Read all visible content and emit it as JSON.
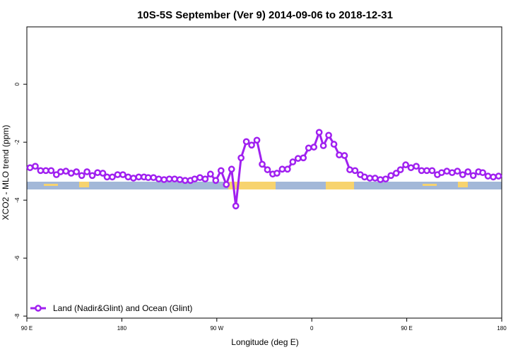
{
  "chart_data": {
    "type": "line",
    "title": "10S-5S September (Ver 9)   2014-09-06 to 2018-12-31",
    "x_label": "Longitude (deg E)",
    "y_label": "XCO2 - MLO trend (ppm)",
    "xlim": [
      90,
      540
    ],
    "ylim": [
      -8.07,
      1.98
    ],
    "xticks": [
      {
        "value": 90,
        "label": "90 E"
      },
      {
        "value": 180,
        "label": "180"
      },
      {
        "value": 270,
        "label": "90 W"
      },
      {
        "value": 360,
        "label": "0"
      },
      {
        "value": 450,
        "label": "90 E"
      },
      {
        "value": 540,
        "label": "180"
      }
    ],
    "yticks": [
      -8,
      -6,
      -4,
      -2,
      0
    ],
    "legend_position": "bottom-left",
    "x": [
      93,
      98,
      103,
      108,
      113,
      118,
      122,
      127,
      132,
      137,
      142,
      147,
      152,
      157,
      162,
      166,
      171,
      176,
      181,
      186,
      191,
      196,
      201,
      205,
      210,
      215,
      220,
      225,
      230,
      235,
      240,
      245,
      249,
      254,
      259,
      264,
      269,
      274,
      279,
      284,
      288,
      293,
      298,
      303,
      308,
      313,
      318,
      323,
      327,
      332,
      337,
      342,
      347,
      352,
      357,
      362,
      367,
      371,
      376,
      381,
      386,
      391,
      396,
      401,
      406,
      410,
      415,
      420,
      425,
      430,
      435,
      440,
      444,
      449,
      454,
      459,
      464,
      469,
      474,
      479,
      483,
      488,
      493,
      498,
      503,
      508,
      513,
      518,
      522,
      527,
      532,
      537
    ],
    "series": [
      {
        "name": "Land (Nadir&Glint) and Ocean (Glint)",
        "color": "#a020f0",
        "values": [
          -2.88,
          -2.83,
          -2.98,
          -2.98,
          -2.98,
          -3.12,
          -3.02,
          -3.0,
          -3.07,
          -3.02,
          -3.15,
          -3.02,
          -3.15,
          -3.05,
          -3.07,
          -3.2,
          -3.2,
          -3.12,
          -3.12,
          -3.2,
          -3.24,
          -3.2,
          -3.2,
          -3.22,
          -3.22,
          -3.27,
          -3.29,
          -3.27,
          -3.27,
          -3.29,
          -3.32,
          -3.32,
          -3.27,
          -3.22,
          -3.27,
          -3.1,
          -3.32,
          -2.98,
          -3.46,
          -2.93,
          -4.2,
          -2.54,
          -1.98,
          -2.1,
          -1.93,
          -2.76,
          -2.95,
          -3.1,
          -3.07,
          -2.93,
          -2.93,
          -2.68,
          -2.56,
          -2.54,
          -2.2,
          -2.17,
          -1.66,
          -2.12,
          -1.76,
          -2.07,
          -2.44,
          -2.46,
          -2.95,
          -2.98,
          -3.12,
          -3.2,
          -3.24,
          -3.24,
          -3.29,
          -3.27,
          -3.15,
          -3.07,
          -2.95,
          -2.78,
          -2.88,
          -2.83,
          -2.98,
          -2.98,
          -2.98,
          -3.12,
          -3.05,
          -3.0,
          -3.05,
          -3.0,
          -3.12,
          -3.02,
          -3.15,
          -3.02,
          -3.05,
          -3.17,
          -3.2,
          -3.17
        ]
      }
    ]
  }
}
